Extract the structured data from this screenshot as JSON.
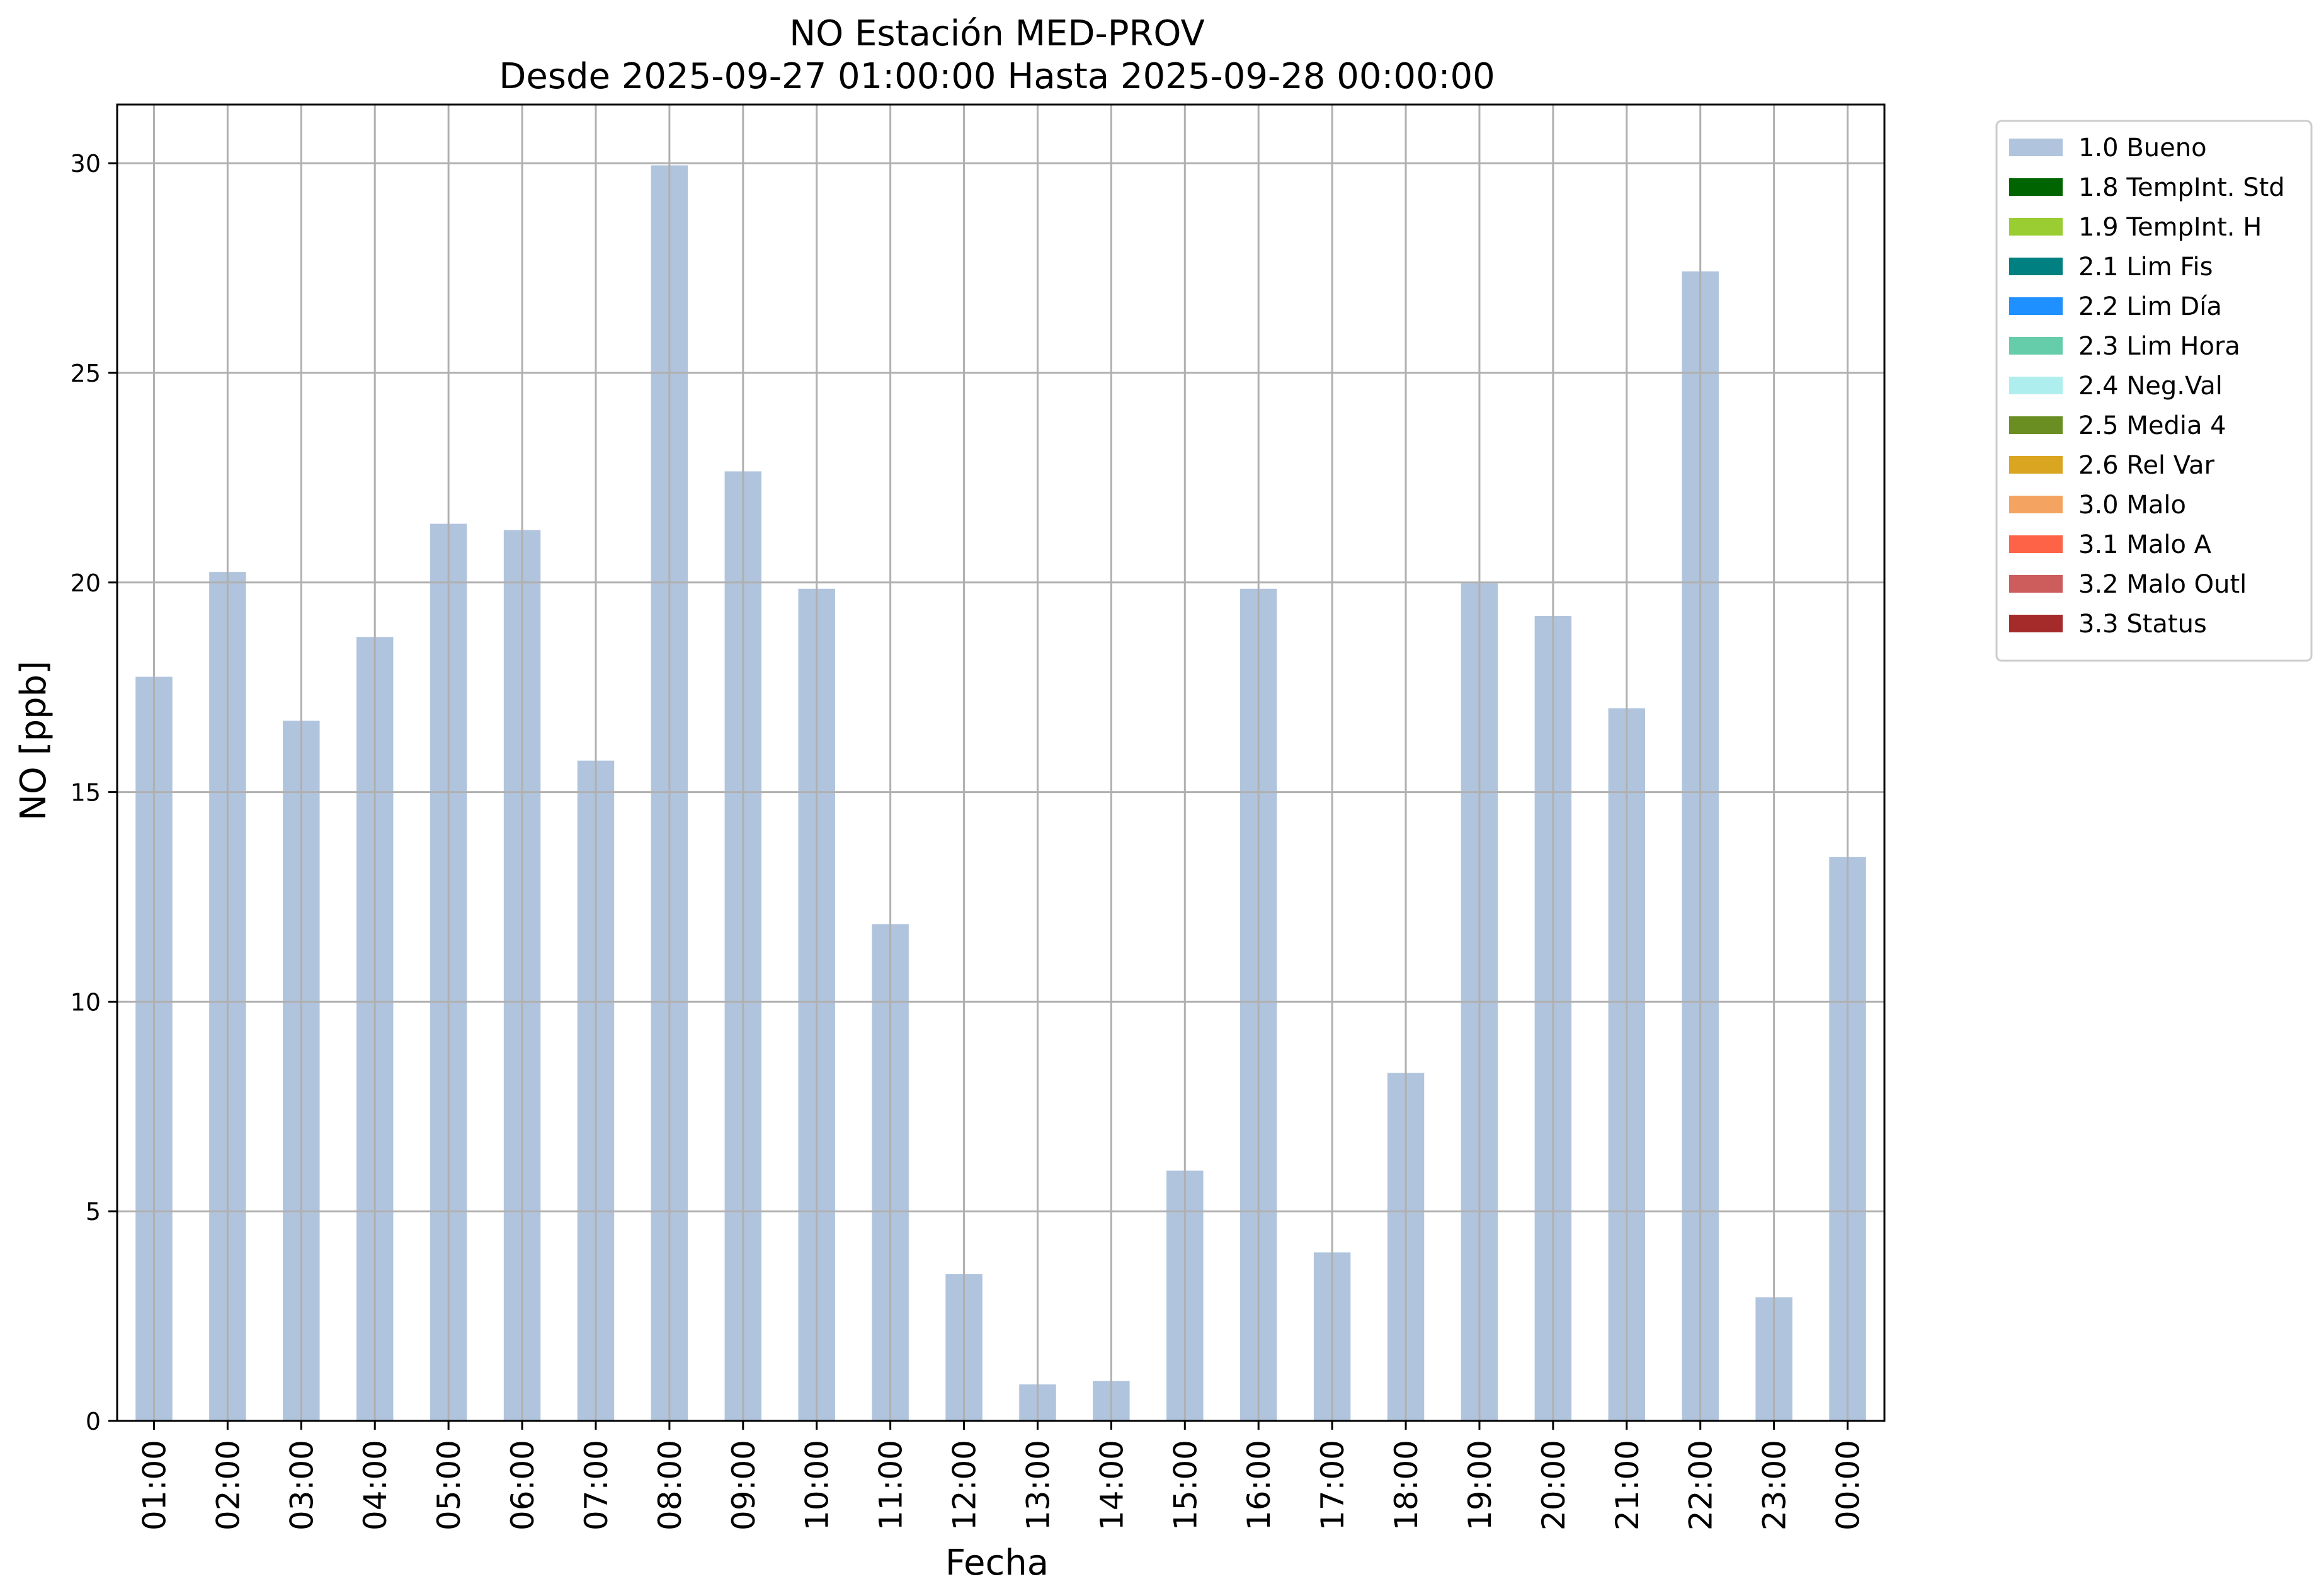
{
  "chart_data": {
    "type": "bar",
    "title": "NO Estación MED-PROV",
    "subtitle": "Desde 2025-09-27 01:00:00 Hasta 2025-09-28 00:00:00",
    "xlabel": "Fecha",
    "ylabel": "NO [ppb]",
    "ylim": [
      0,
      31.4
    ],
    "yticks": [
      0,
      5,
      10,
      15,
      20,
      25,
      30
    ],
    "grid": true,
    "legend_position": "outside-top-right",
    "categories": [
      "01:00",
      "02:00",
      "03:00",
      "04:00",
      "05:00",
      "06:00",
      "07:00",
      "08:00",
      "09:00",
      "10:00",
      "11:00",
      "12:00",
      "13:00",
      "14:00",
      "15:00",
      "16:00",
      "17:00",
      "18:00",
      "19:00",
      "20:00",
      "21:00",
      "22:00",
      "23:00",
      "00:00"
    ],
    "series": [
      {
        "name": "1.0 Bueno",
        "color": "#b0c4de",
        "values": [
          17.75,
          20.25,
          16.7,
          18.7,
          21.4,
          21.25,
          15.75,
          29.95,
          22.65,
          19.85,
          11.85,
          3.5,
          0.87,
          0.95,
          5.97,
          19.85,
          4.02,
          8.3,
          19.98,
          19.2,
          17.0,
          27.42,
          2.95,
          13.45
        ]
      }
    ],
    "legend": [
      {
        "label": "1.0 Bueno",
        "color": "#b0c4de"
      },
      {
        "label": "1.8 TempInt. Std",
        "color": "#006400"
      },
      {
        "label": "1.9 TempInt. H",
        "color": "#9acd32"
      },
      {
        "label": "2.1 Lim Fis",
        "color": "#008080"
      },
      {
        "label": "2.2 Lim Día",
        "color": "#1e90ff"
      },
      {
        "label": "2.3 Lim Hora",
        "color": "#66cdaa"
      },
      {
        "label": "2.4 Neg.Val",
        "color": "#afeeee"
      },
      {
        "label": "2.5 Media 4",
        "color": "#6b8e23"
      },
      {
        "label": "2.6 Rel Var",
        "color": "#daa520"
      },
      {
        "label": "3.0 Malo",
        "color": "#f4a460"
      },
      {
        "label": "3.1 Malo A",
        "color": "#ff6347"
      },
      {
        "label": "3.2 Malo Outl",
        "color": "#cd5c5c"
      },
      {
        "label": "3.3 Status",
        "color": "#a52a2a"
      }
    ]
  }
}
